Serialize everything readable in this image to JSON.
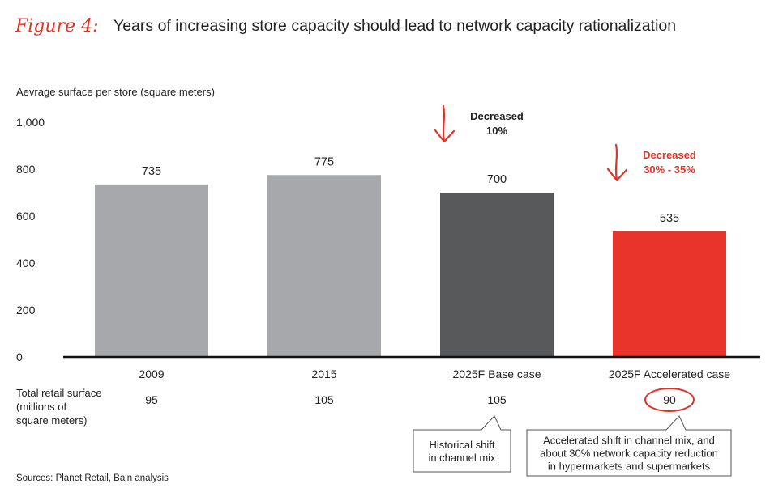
{
  "chart_data": {
    "type": "bar",
    "figure_label": "Figure 4:",
    "title": "Years of increasing store capacity should lead to network capacity rationalization",
    "ylabel": "Aevrage surface per store (square meters)",
    "ylim": [
      0,
      1000
    ],
    "yticks": [
      0,
      200,
      400,
      600,
      800,
      1000
    ],
    "ytick_labels": [
      "0",
      "200",
      "400",
      "600",
      "800",
      "1,000"
    ],
    "categories": [
      "2009",
      "2015",
      "2025F Base case",
      "2025F Accelerated case"
    ],
    "values": [
      735,
      775,
      700,
      535
    ],
    "bar_colors": [
      "#a7a8ac",
      "#a7a8ac",
      "#58595b",
      "#e8342a"
    ],
    "annotations": [
      {
        "bar": 2,
        "lines": [
          "Decreased",
          "10%"
        ],
        "color": "#222222"
      },
      {
        "bar": 3,
        "lines": [
          "Decreased",
          "30% - 35%"
        ],
        "color": "#e03327"
      }
    ],
    "retail_surface": {
      "label_lines": [
        "Total retail surface",
        "(millions of",
        "square meters)"
      ],
      "values": [
        "95",
        "105",
        "105",
        "90"
      ],
      "circled_index": 3
    },
    "callouts": [
      {
        "bar": 2,
        "lines": [
          "Historical shift",
          "in channel mix"
        ]
      },
      {
        "bar": 3,
        "lines": [
          "Accelerated shift in channel mix, and",
          "about 30% network capacity reduction",
          "in hypermarkets and supermarkets"
        ]
      }
    ],
    "source": "Sources: Planet Retail, Bain analysis"
  },
  "colors": {
    "accent": "#e03327",
    "axis": "#111111"
  }
}
